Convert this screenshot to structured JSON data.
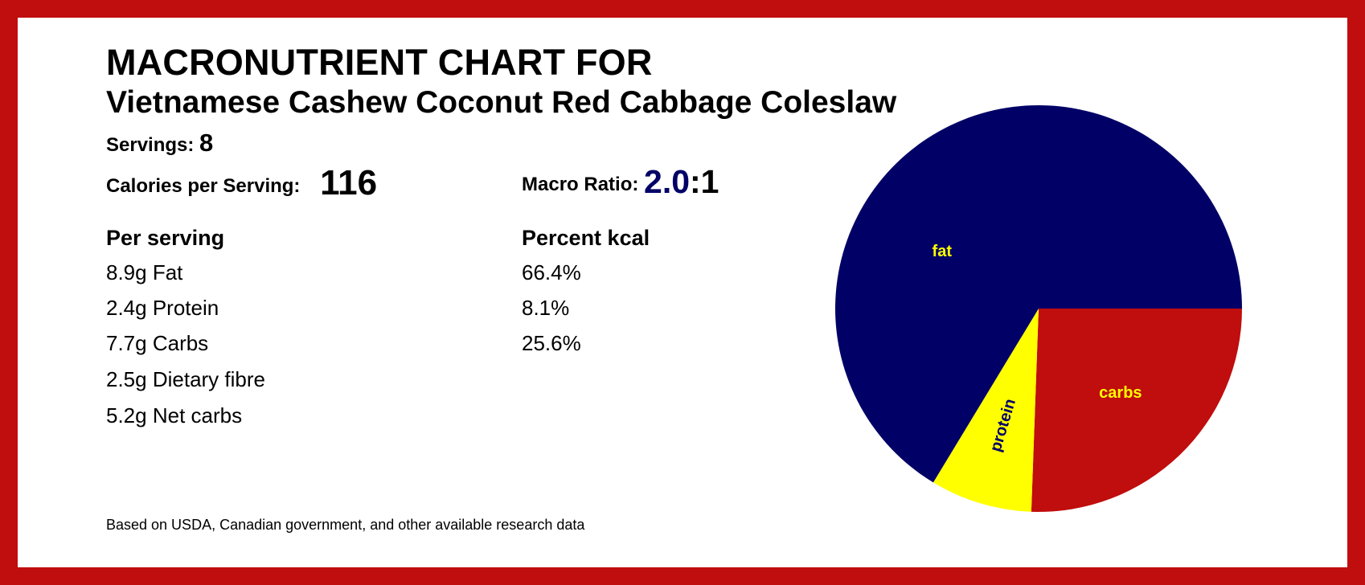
{
  "title": "MACRONUTRIENT CHART FOR",
  "recipe": "Vietnamese Cashew Coconut Red Cabbage Coleslaw",
  "servings": {
    "label": "Servings:",
    "value": "8"
  },
  "calories": {
    "label": "Calories per Serving:",
    "value": "116"
  },
  "macro_ratio": {
    "label": "Macro Ratio:",
    "value_main": "2.0",
    "value_rest": ":1"
  },
  "per_serving": {
    "header": "Per serving",
    "items": [
      "8.9g Fat",
      "2.4g Protein",
      "7.7g Carbs",
      "2.5g Dietary fibre",
      "5.2g Net carbs"
    ]
  },
  "percent_kcal": {
    "header": "Percent kcal",
    "items": [
      "66.4%",
      "8.1%",
      "25.6%"
    ]
  },
  "footnote": "Based on USDA, Canadian government, and other available research data",
  "colors": {
    "border": "#c00d0d",
    "fat": "#000066",
    "protein": "#ffff00",
    "carbs": "#c00d0d",
    "fat_label": "#ffff00",
    "protein_label": "#000066",
    "carbs_label": "#ffff00"
  },
  "chart_data": {
    "type": "pie",
    "title": "",
    "start_angle_deg": 0,
    "direction": "clockwise",
    "slices": [
      {
        "label": "carbs",
        "value": 25.6,
        "color": "#c00d0d",
        "label_color": "#ffff00"
      },
      {
        "label": "protein",
        "value": 8.1,
        "color": "#ffff00",
        "label_color": "#000066"
      },
      {
        "label": "fat",
        "value": 66.4,
        "color": "#000066",
        "label_color": "#ffff00"
      }
    ]
  }
}
